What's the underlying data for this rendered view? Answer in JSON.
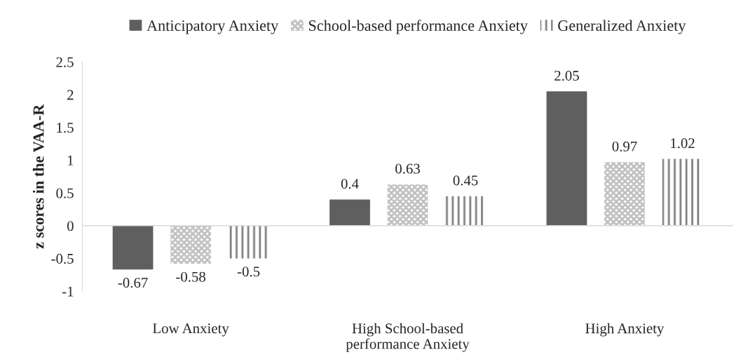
{
  "chart_data": {
    "type": "bar",
    "ylabel": "z scores in the VAA-R",
    "categories": [
      "Low Anxiety",
      "High School-based\nperformance Anxiety",
      "High Anxiety"
    ],
    "series": [
      {
        "name": "Anticipatory Anxiety",
        "color": "#5f5f5f",
        "values": [
          -0.67,
          0.4,
          2.05
        ]
      },
      {
        "name": "School-based performance Anxiety",
        "color": "#bfbfbf",
        "values": [
          -0.58,
          0.63,
          0.97
        ]
      },
      {
        "name": "Generalized Anxiety",
        "color": "#7f7f7f",
        "values": [
          -0.5,
          0.45,
          1.02
        ]
      }
    ],
    "ylim": [
      -1,
      2.5
    ],
    "yticks": [
      -1,
      -0.5,
      0,
      0.5,
      1,
      1.5,
      2,
      2.5
    ],
    "legend": "top",
    "data_labels": true
  }
}
